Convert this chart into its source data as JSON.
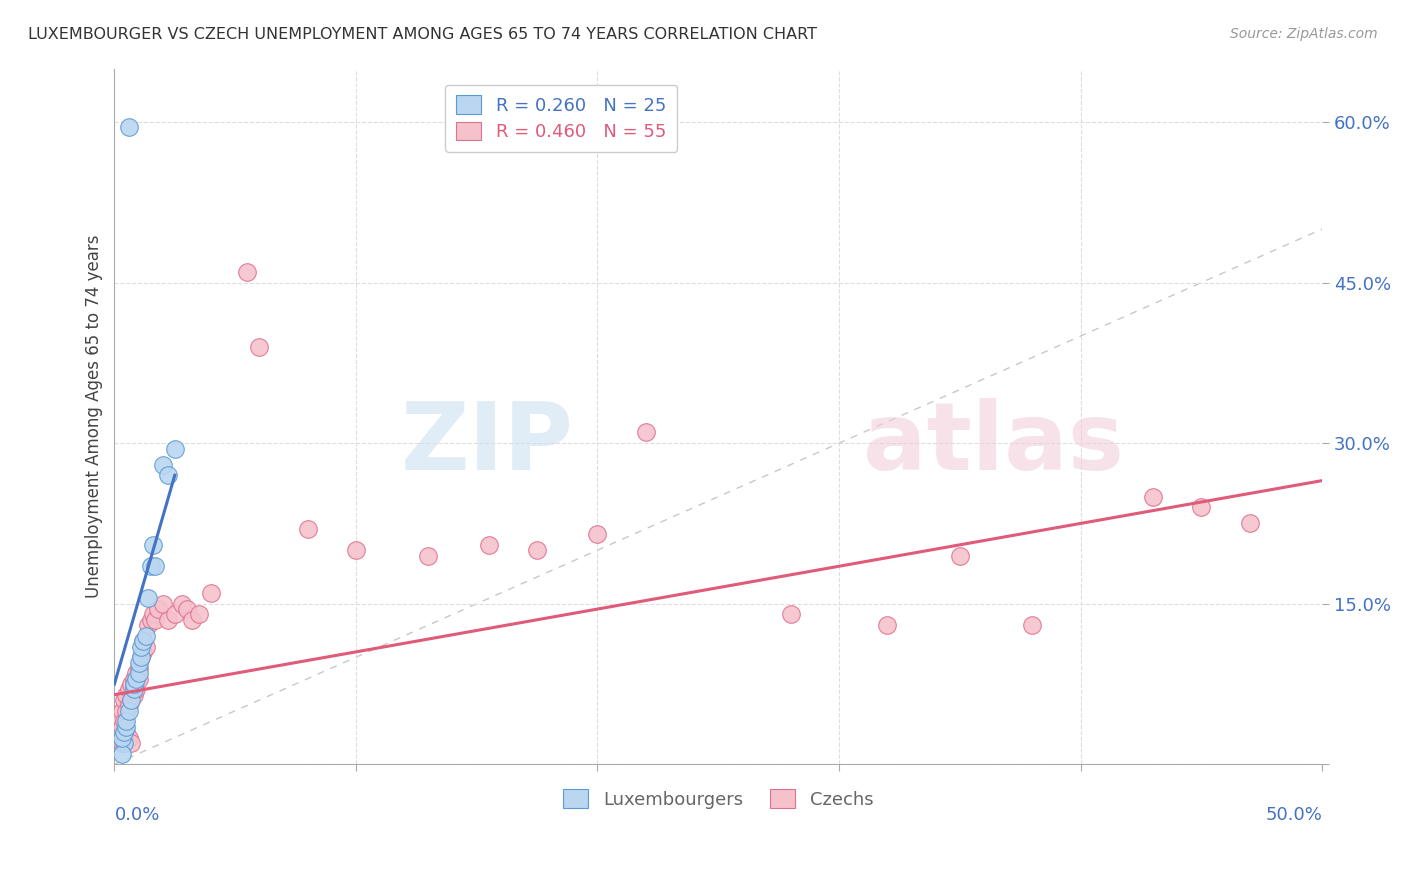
{
  "title": "LUXEMBOURGER VS CZECH UNEMPLOYMENT AMONG AGES 65 TO 74 YEARS CORRELATION CHART",
  "source": "Source: ZipAtlas.com",
  "ylabel": "Unemployment Among Ages 65 to 74 years",
  "xlim": [
    0.0,
    0.5
  ],
  "ylim": [
    0.0,
    0.65
  ],
  "yticks": [
    0.0,
    0.15,
    0.3,
    0.45,
    0.6
  ],
  "ytick_labels": [
    "",
    "15.0%",
    "30.0%",
    "45.0%",
    "60.0%"
  ],
  "lux_color": "#bad6f0",
  "lux_edge_color": "#5b9bd5",
  "lux_line_color": "#4472c4",
  "czech_color": "#f5c2cc",
  "czech_edge_color": "#e07090",
  "czech_line_color": "#e05a7a",
  "diagonal_color": "#c8c8c8",
  "lux_x": [
    0.006,
    0.004,
    0.003,
    0.003,
    0.004,
    0.005,
    0.005,
    0.006,
    0.007,
    0.008,
    0.008,
    0.009,
    0.01,
    0.01,
    0.011,
    0.011,
    0.012,
    0.013,
    0.014,
    0.015,
    0.016,
    0.017,
    0.02,
    0.022,
    0.025
  ],
  "lux_y": [
    0.595,
    0.02,
    0.01,
    0.025,
    0.03,
    0.035,
    0.04,
    0.05,
    0.06,
    0.07,
    0.075,
    0.08,
    0.085,
    0.095,
    0.1,
    0.11,
    0.115,
    0.12,
    0.155,
    0.185,
    0.205,
    0.185,
    0.28,
    0.27,
    0.295
  ],
  "czech_x": [
    0.002,
    0.003,
    0.003,
    0.004,
    0.004,
    0.005,
    0.005,
    0.006,
    0.006,
    0.007,
    0.007,
    0.008,
    0.008,
    0.009,
    0.009,
    0.01,
    0.01,
    0.011,
    0.012,
    0.012,
    0.013,
    0.014,
    0.015,
    0.016,
    0.017,
    0.018,
    0.02,
    0.022,
    0.025,
    0.028,
    0.03,
    0.032,
    0.035,
    0.04,
    0.055,
    0.06,
    0.08,
    0.1,
    0.13,
    0.155,
    0.175,
    0.2,
    0.22,
    0.28,
    0.32,
    0.35,
    0.38,
    0.43,
    0.45,
    0.47,
    0.003,
    0.004,
    0.005,
    0.006,
    0.007
  ],
  "czech_y": [
    0.04,
    0.035,
    0.05,
    0.04,
    0.06,
    0.05,
    0.065,
    0.055,
    0.07,
    0.06,
    0.075,
    0.065,
    0.08,
    0.07,
    0.085,
    0.08,
    0.09,
    0.1,
    0.105,
    0.115,
    0.11,
    0.13,
    0.135,
    0.14,
    0.135,
    0.145,
    0.15,
    0.135,
    0.14,
    0.15,
    0.145,
    0.135,
    0.14,
    0.16,
    0.46,
    0.39,
    0.22,
    0.2,
    0.195,
    0.205,
    0.2,
    0.215,
    0.31,
    0.14,
    0.13,
    0.195,
    0.13,
    0.25,
    0.24,
    0.225,
    0.02,
    0.025,
    0.03,
    0.025,
    0.02
  ],
  "lux_line_x": [
    0.0,
    0.025
  ],
  "lux_line_y": [
    0.075,
    0.27
  ],
  "czech_line_x": [
    0.0,
    0.5
  ],
  "czech_line_y": [
    0.065,
    0.265
  ],
  "lux_label": "Luxembourgers",
  "czech_label": "Czechs",
  "legend_lux": "R = 0.260   N = 25",
  "legend_czech": "R = 0.460   N = 55"
}
